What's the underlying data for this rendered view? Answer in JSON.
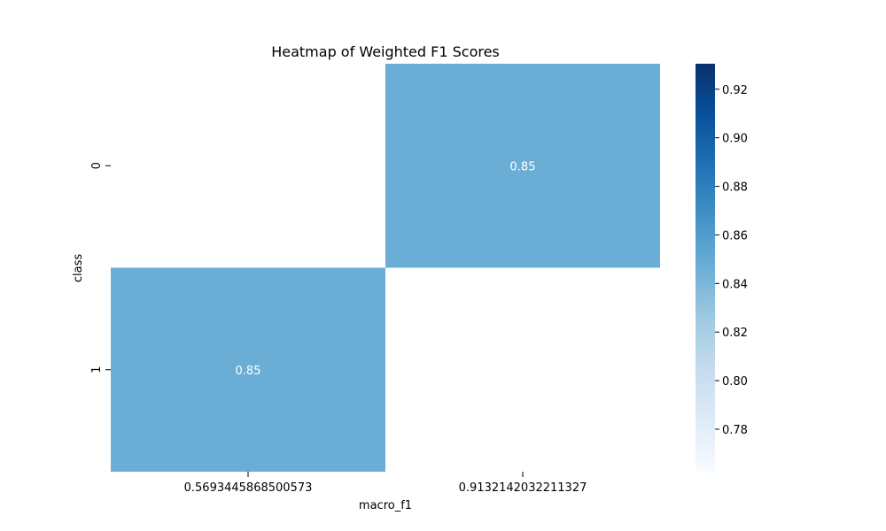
{
  "chart_data": {
    "type": "heatmap",
    "title": "Heatmap of Weighted F1 Scores",
    "xlabel": "macro_f1",
    "ylabel": "class",
    "x_categories": [
      "0.5693445868500573",
      "0.9132142032211327"
    ],
    "y_categories": [
      "0",
      "1"
    ],
    "cells": [
      {
        "x": "0.9132142032211327",
        "y": "0",
        "value": 0.85,
        "label": "0.85"
      },
      {
        "x": "0.5693445868500573",
        "y": "1",
        "value": 0.85,
        "label": "0.85"
      }
    ],
    "colorbar": {
      "colormap": "Blues",
      "range": [
        0.7625,
        0.9305
      ],
      "ticks": [
        0.78,
        0.8,
        0.82,
        0.84,
        0.86,
        0.88,
        0.9,
        0.92
      ],
      "tick_labels": [
        "0.78",
        "0.80",
        "0.82",
        "0.84",
        "0.86",
        "0.88",
        "0.90",
        "0.92"
      ]
    },
    "colors": {
      "cell": "#6aaed6",
      "colormap_low": "#f7fbff",
      "colormap_high": "#08306b"
    },
    "grid": false,
    "legend": "colorbar-right"
  }
}
